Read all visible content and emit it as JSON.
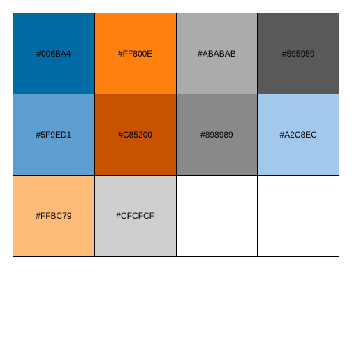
{
  "palette": {
    "swatches": [
      {
        "label": "#006BA4",
        "color": "#006BA4"
      },
      {
        "label": "#FF800E",
        "color": "#FF800E"
      },
      {
        "label": "#ABABAB",
        "color": "#ABABAB"
      },
      {
        "label": "#595959",
        "color": "#595959"
      },
      {
        "label": "#5F9ED1",
        "color": "#5F9ED1"
      },
      {
        "label": "#C85200",
        "color": "#C85200"
      },
      {
        "label": "#898989",
        "color": "#898989"
      },
      {
        "label": "#A2C8EC",
        "color": "#A2C8EC"
      },
      {
        "label": "#FFBC79",
        "color": "#FFBC79"
      },
      {
        "label": "#CFCFCF",
        "color": "#CFCFCF"
      },
      {
        "label": "",
        "color": "#FFFFFF"
      },
      {
        "label": "",
        "color": "#FFFFFF"
      }
    ]
  }
}
